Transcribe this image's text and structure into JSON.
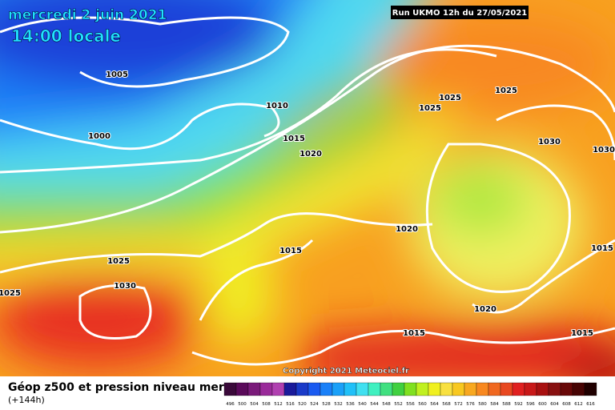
{
  "header": {
    "date": "mercredi 2 juin 2021",
    "time": "14:00 locale",
    "run": "Run UKMO 12h du 27/05/2021"
  },
  "isobars": [
    "1005",
    "1010",
    "1000",
    "1015",
    "1020",
    "1025",
    "1025",
    "1025",
    "1030",
    "1030",
    "1020",
    "1015",
    "1025",
    "1030",
    "1025",
    "1015",
    "1020",
    "1015",
    "1015"
  ],
  "copyright": "Copyright 2021 Meteociel.fr",
  "legend": {
    "title": "Géop z500 et pression niveau mer",
    "lead": "(+144h)",
    "labels": [
      496,
      500,
      504,
      508,
      512,
      516,
      520,
      524,
      528,
      532,
      536,
      540,
      544,
      548,
      552,
      556,
      560,
      564,
      568,
      572,
      576,
      580,
      584,
      588,
      592,
      596,
      600,
      604,
      608,
      612,
      616
    ],
    "colors": [
      "#3a0a3a",
      "#5a0a5a",
      "#7a1a7a",
      "#9a2a9a",
      "#b040b0",
      "#1a1a9a",
      "#1a3ac8",
      "#1a5af0",
      "#1a80f8",
      "#1aa0f8",
      "#20c0f8",
      "#40e0f0",
      "#40f0c0",
      "#40e080",
      "#40d040",
      "#80e020",
      "#c0f020",
      "#f0f020",
      "#f8e040",
      "#f8c820",
      "#f8a820",
      "#f88820",
      "#f06820",
      "#e84820",
      "#e02020",
      "#c81818",
      "#a81010",
      "#881010",
      "#680808",
      "#480404",
      "#200000"
    ]
  }
}
